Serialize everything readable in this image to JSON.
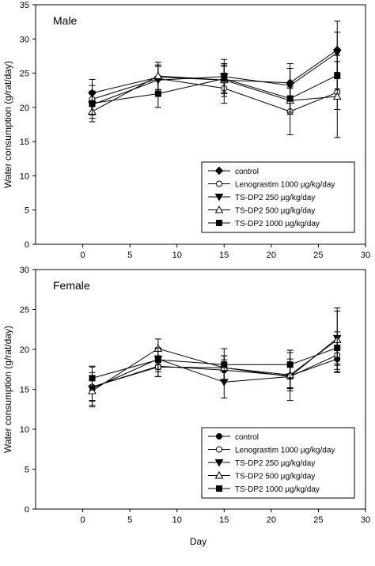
{
  "chart_data": [
    {
      "type": "line",
      "title": "Male",
      "xlabel": "",
      "ylabel": "Water consumption (g/rat/day)",
      "xlim": [
        -5,
        30
      ],
      "ylim": [
        0,
        35
      ],
      "xticks": [
        "0",
        "5",
        "10",
        "15",
        "20",
        "25",
        "30"
      ],
      "yticks": [
        "0",
        "5",
        "10",
        "15",
        "20",
        "25",
        "30",
        "35"
      ],
      "x": [
        1,
        8,
        15,
        22,
        27
      ],
      "series": [
        {
          "name": "control",
          "marker": "filled-diamond",
          "values": [
            22.1,
            24.4,
            24.0,
            23.6,
            28.4
          ],
          "errors": [
            2.0,
            1.8,
            2.4,
            2.8,
            4.2
          ]
        },
        {
          "name": "Lenograstim 1000 µg/kg/day",
          "marker": "open-circle",
          "values": [
            21.2,
            24.2,
            22.8,
            19.4,
            22.2
          ],
          "errors": [
            2.0,
            1.8,
            2.2,
            3.4,
            2.5
          ]
        },
        {
          "name": "TS-DP2 250 µg/kg/day",
          "marker": "filled-triangle-down",
          "values": [
            20.4,
            24.0,
            24.5,
            23.2,
            28.0
          ],
          "errors": [
            2.0,
            2.0,
            2.5,
            2.5,
            3.0
          ]
        },
        {
          "name": "TS-DP2 500 µg/kg/day",
          "marker": "open-triangle-up",
          "values": [
            19.4,
            24.6,
            24.0,
            21.0,
            21.6
          ],
          "errors": [
            1.5,
            2.0,
            2.0,
            2.0,
            6.0
          ]
        },
        {
          "name": "TS-DP2 1000 µg/kg/day",
          "marker": "filled-square",
          "values": [
            20.6,
            22.0,
            24.2,
            21.3,
            24.7
          ],
          "errors": [
            1.7,
            2.0,
            2.0,
            2.0,
            2.0
          ]
        }
      ],
      "legend_position": "bottom-right"
    },
    {
      "type": "line",
      "title": "Female",
      "xlabel": "Day",
      "ylabel": "Water consumption (g/rat/day)",
      "xlim": [
        -5,
        30
      ],
      "ylim": [
        0,
        30
      ],
      "xticks": [
        "0",
        "5",
        "10",
        "15",
        "20",
        "25",
        "30"
      ],
      "yticks": [
        "0",
        "5",
        "10",
        "15",
        "20",
        "25",
        "30"
      ],
      "x": [
        1,
        8,
        15,
        22,
        27
      ],
      "series": [
        {
          "name": "control",
          "marker": "filled-circle",
          "values": [
            15.3,
            17.9,
            17.4,
            16.7,
            18.8
          ],
          "errors": [
            2.5,
            1.3,
            1.3,
            1.5,
            1.7
          ]
        },
        {
          "name": "Lenograstim 1000 µg/kg/day",
          "marker": "open-circle",
          "values": [
            15.3,
            17.8,
            17.7,
            16.6,
            19.3
          ],
          "errors": [
            1.8,
            1.2,
            1.5,
            1.5,
            1.8
          ]
        },
        {
          "name": "TS-DP2 250 µg/kg/day",
          "marker": "filled-triangle-down",
          "values": [
            15.1,
            18.8,
            15.9,
            16.6,
            21.4
          ],
          "errors": [
            1.5,
            1.3,
            2.0,
            3.0,
            3.4
          ]
        },
        {
          "name": "TS-DP2 500 µg/kg/day",
          "marker": "open-triangle-up",
          "values": [
            14.8,
            20.1,
            17.7,
            16.8,
            21.2
          ],
          "errors": [
            1.8,
            1.2,
            1.5,
            2.0,
            4.0
          ]
        },
        {
          "name": "TS-DP2 1000 µg/kg/day",
          "marker": "filled-square",
          "values": [
            16.4,
            18.7,
            18.1,
            18.1,
            20.2
          ],
          "errors": [
            1.5,
            1.5,
            2.0,
            1.8,
            2.0
          ]
        }
      ],
      "legend_position": "bottom-right"
    }
  ]
}
